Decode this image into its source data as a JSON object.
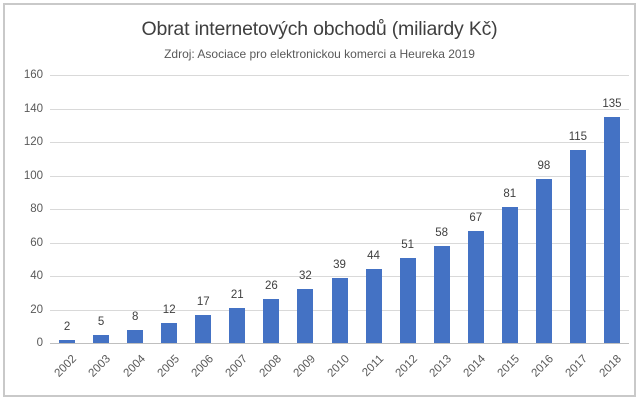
{
  "chart": {
    "title": "Obrat internetových obchodů (miliardy Kč)",
    "subtitle": "Zdroj: Asociace pro elektronickou komerci a Heureka 2019"
  },
  "chart_data": {
    "type": "bar",
    "title": "Obrat internetových obchodů (miliardy Kč)",
    "subtitle": "Zdroj: Asociace pro elektronickou komerci a Heureka 2019",
    "categories": [
      "2002",
      "2003",
      "2004",
      "2005",
      "2006",
      "2007",
      "2008",
      "2009",
      "2010",
      "2011",
      "2012",
      "2013",
      "2014",
      "2015",
      "2016",
      "2017",
      "2018"
    ],
    "values": [
      2,
      5,
      8,
      12,
      17,
      21,
      26,
      32,
      39,
      44,
      51,
      58,
      67,
      81,
      98,
      115,
      135
    ],
    "xlabel": "",
    "ylabel": "",
    "ylim": [
      0,
      160
    ],
    "ytick_step": 20,
    "ytick_labels": [
      "0",
      "20",
      "40",
      "60",
      "80",
      "100",
      "120",
      "140",
      "160"
    ],
    "grid": true,
    "legend": "none",
    "data_labels": true,
    "colors": {
      "bar": "#4472C4",
      "title_text": "#3f3f3f",
      "subtitle_text": "#595959",
      "axis_text": "#595959",
      "value_label_text": "#404040",
      "gridline": "#d9d9d9",
      "axis_line": "#bfbfbf",
      "frame_border": "#c9c9c9",
      "background": "#ffffff"
    }
  }
}
